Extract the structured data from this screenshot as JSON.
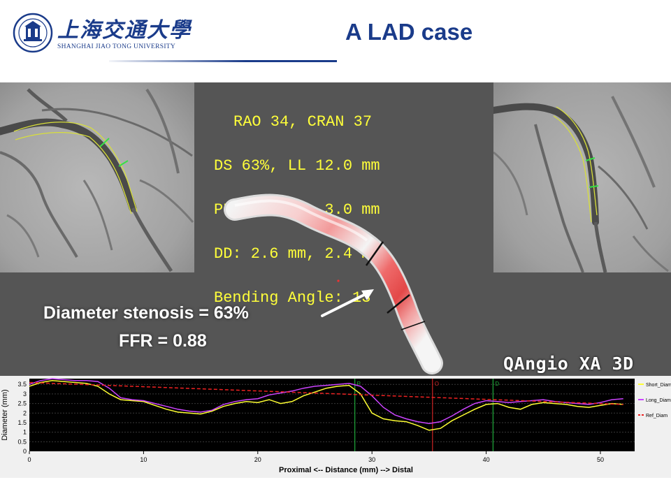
{
  "header": {
    "logo_cn": "上海交通大學",
    "logo_en": "SHANGHAI JIAO TONG UNIVERSITY",
    "title": "A LAD case"
  },
  "viewer": {
    "info_lines": [
      "RAO 34, CRAN 37",
      "DS 63%, LL 12.0 mm",
      "PD: 3.5 mm, 3.0 mm",
      "DD: 2.6 mm, 2.4 mm",
      "Bending Angle: 13"
    ],
    "result_ds": "Diameter stenosis = 63%",
    "result_ffr": "FFR = 0.88",
    "brand": "QAngio XA 3D"
  },
  "chart_data": {
    "type": "line",
    "ylabel": "Diameter (mm)",
    "xlabel": "Proximal <-- Distance (mm) --> Distal",
    "xlim": [
      0,
      53
    ],
    "ylim": [
      0,
      3.8
    ],
    "xticks": [
      0,
      10,
      20,
      30,
      40,
      50
    ],
    "yticks": [
      0,
      0.5,
      1,
      1.5,
      2,
      2.5,
      3,
      3.5
    ],
    "grid": true,
    "legend_position": "right",
    "markers": [
      {
        "label": "P",
        "x": 28.5,
        "color": "#1faa3a"
      },
      {
        "label": "O",
        "x": 35.3,
        "color": "#cc2222"
      },
      {
        "label": "D",
        "x": 40.6,
        "color": "#1faa3a"
      }
    ],
    "series": [
      {
        "name": "Short_Diam",
        "color": "#ffff33",
        "x": [
          0,
          1,
          2,
          3,
          4,
          5,
          6,
          7,
          8,
          9,
          10,
          11,
          12,
          13,
          14,
          15,
          16,
          17,
          18,
          19,
          20,
          21,
          22,
          23,
          24,
          25,
          26,
          27,
          28,
          29,
          30,
          31,
          32,
          33,
          34,
          35,
          36,
          37,
          38,
          39,
          40,
          41,
          42,
          43,
          44,
          45,
          46,
          47,
          48,
          49,
          50,
          51,
          52
        ],
        "values": [
          3.4,
          3.6,
          3.7,
          3.65,
          3.6,
          3.55,
          3.4,
          3.0,
          2.7,
          2.65,
          2.6,
          2.4,
          2.2,
          2.05,
          2.0,
          1.95,
          2.1,
          2.35,
          2.5,
          2.6,
          2.55,
          2.7,
          2.5,
          2.6,
          2.9,
          3.1,
          3.3,
          3.4,
          3.45,
          3.0,
          2.0,
          1.7,
          1.6,
          1.55,
          1.35,
          1.1,
          1.2,
          1.6,
          1.9,
          2.2,
          2.45,
          2.5,
          2.3,
          2.2,
          2.45,
          2.55,
          2.5,
          2.45,
          2.35,
          2.3,
          2.4,
          2.5,
          2.45
        ]
      },
      {
        "name": "Long_Diam",
        "color": "#cc44ff",
        "x": [
          0,
          1,
          2,
          3,
          4,
          5,
          6,
          7,
          8,
          9,
          10,
          11,
          12,
          13,
          14,
          15,
          16,
          17,
          18,
          19,
          20,
          21,
          22,
          23,
          24,
          25,
          26,
          27,
          28,
          29,
          30,
          31,
          32,
          33,
          34,
          35,
          36,
          37,
          38,
          39,
          40,
          41,
          42,
          43,
          44,
          45,
          46,
          47,
          48,
          49,
          50,
          51,
          52
        ],
        "values": [
          3.5,
          3.7,
          3.8,
          3.75,
          3.7,
          3.7,
          3.65,
          3.3,
          2.8,
          2.7,
          2.65,
          2.5,
          2.35,
          2.2,
          2.1,
          2.05,
          2.15,
          2.45,
          2.6,
          2.7,
          2.75,
          2.95,
          3.05,
          3.15,
          3.3,
          3.4,
          3.45,
          3.5,
          3.55,
          3.4,
          2.9,
          2.3,
          1.9,
          1.7,
          1.55,
          1.45,
          1.55,
          1.85,
          2.2,
          2.5,
          2.65,
          2.6,
          2.55,
          2.6,
          2.65,
          2.7,
          2.6,
          2.55,
          2.5,
          2.45,
          2.55,
          2.7,
          2.75
        ]
      },
      {
        "name": "Ref_Diam",
        "color": "#ee2222",
        "x": [
          0,
          52
        ],
        "values": [
          3.6,
          2.45
        ]
      }
    ]
  }
}
